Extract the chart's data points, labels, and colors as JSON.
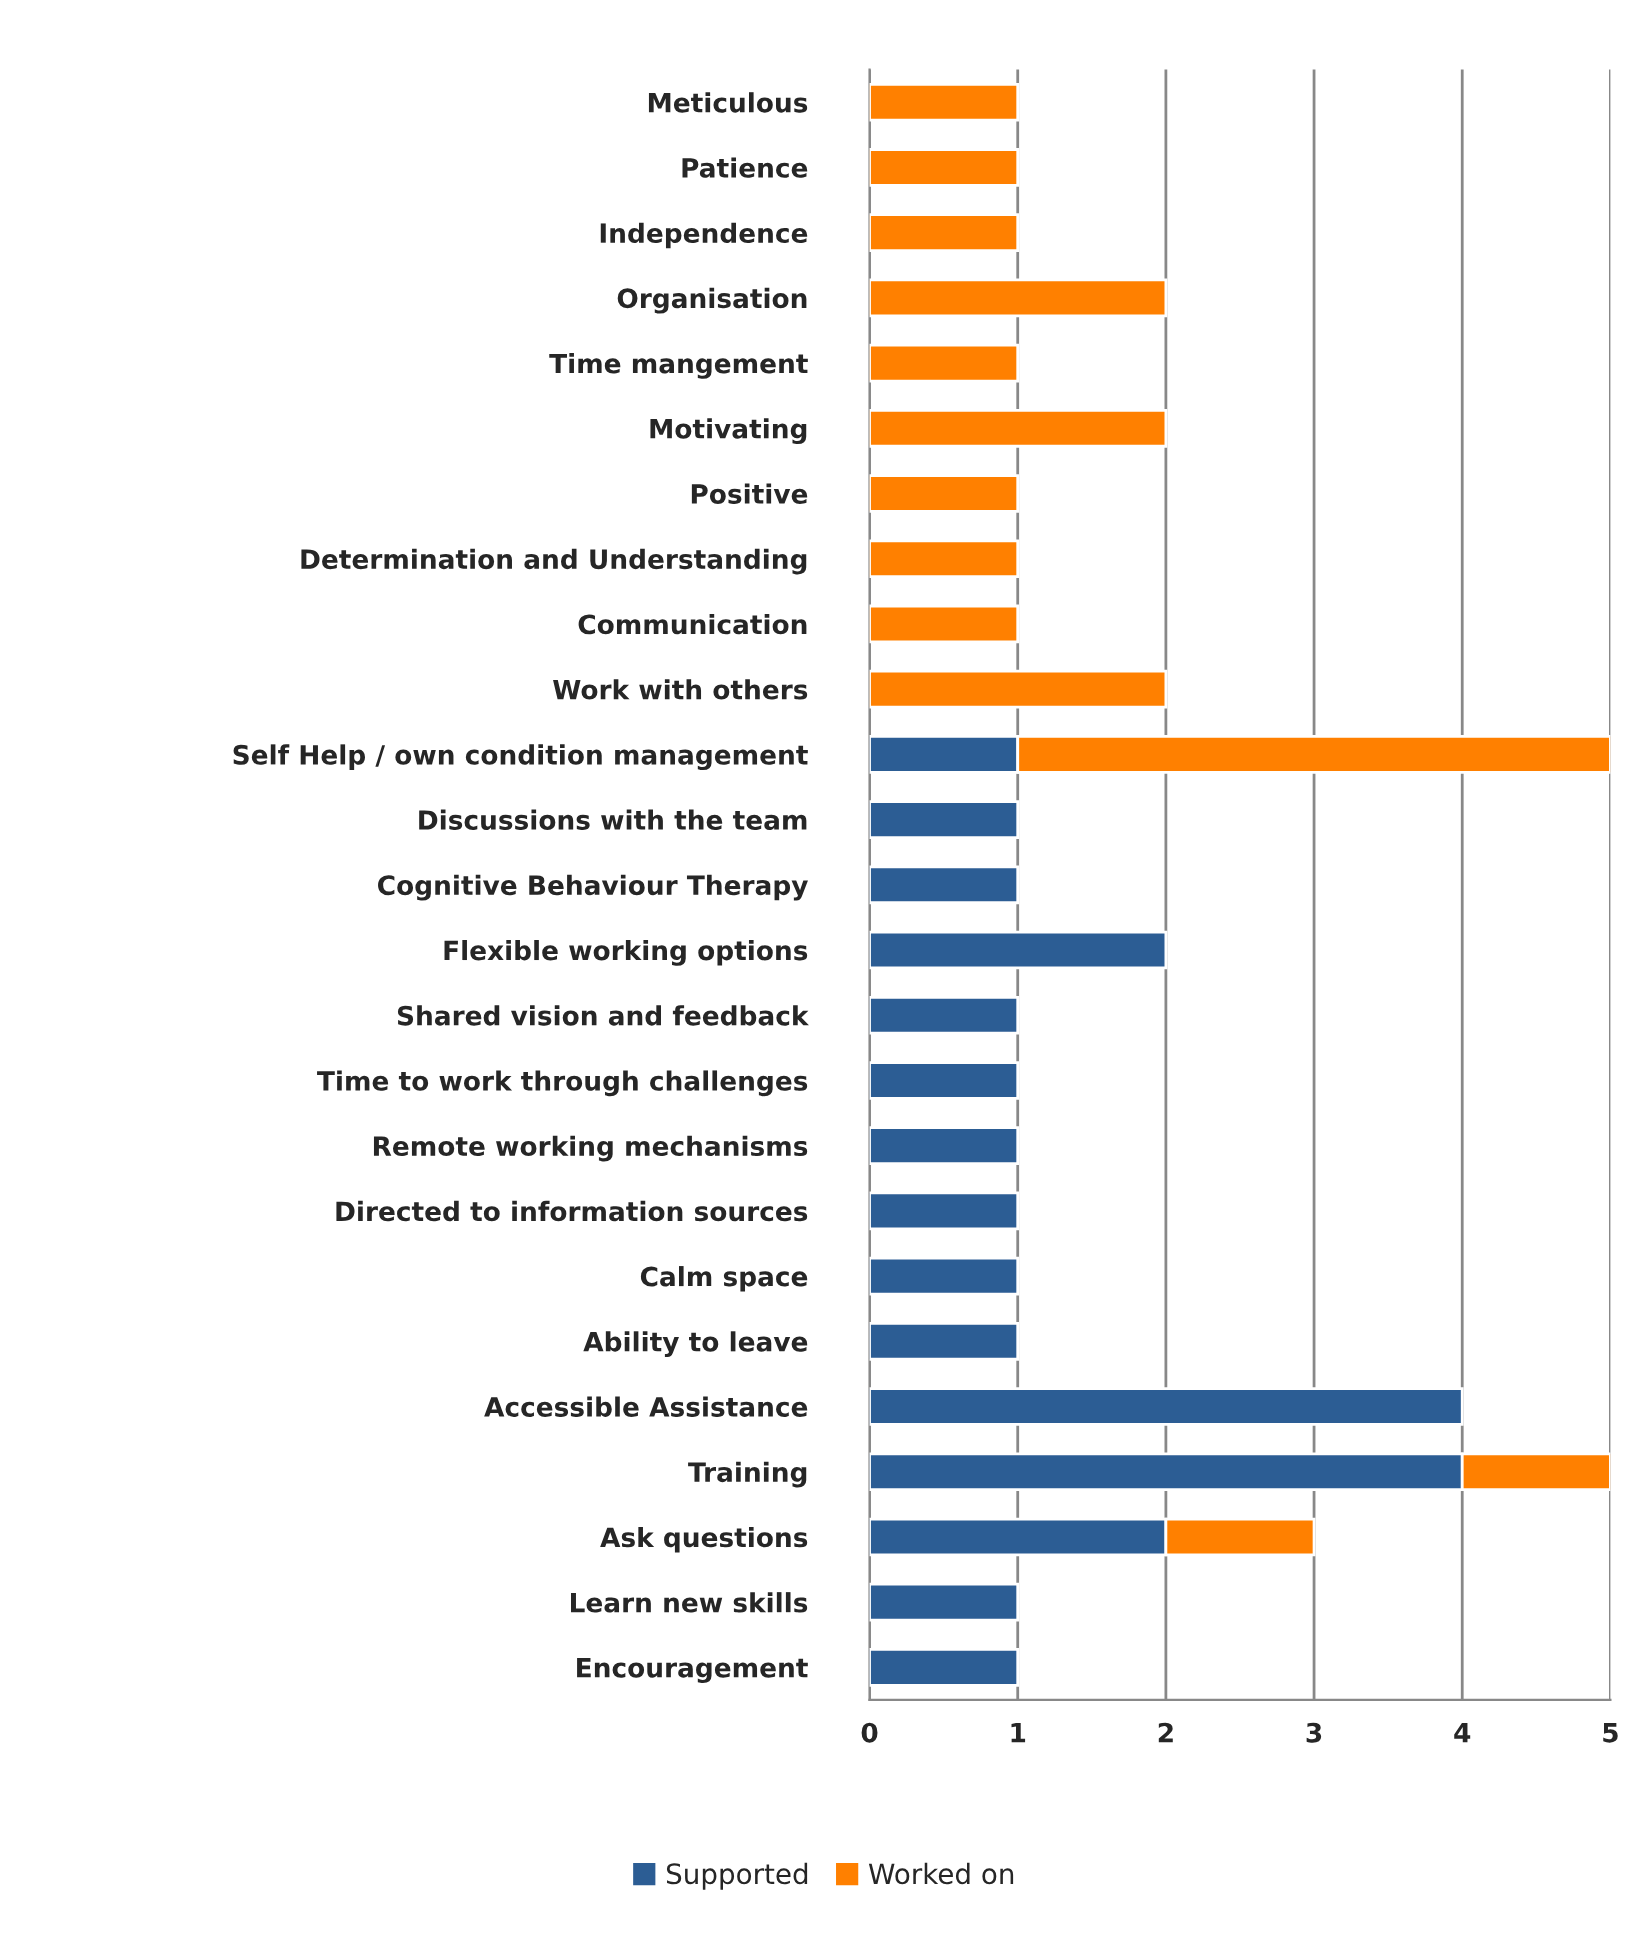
{
  "chart_data": {
    "type": "bar",
    "orientation": "horizontal",
    "stacked": true,
    "categories": [
      "Meticulous",
      "Patience",
      "Independence",
      "Organisation",
      "Time mangement",
      "Motivating",
      "Positive",
      "Determination and Understanding",
      "Communication",
      "Work with others",
      "Self Help / own condition management",
      "Discussions with the team",
      "Cognitive Behaviour Therapy",
      "Flexible working options",
      "Shared vision and feedback",
      "Time to work through challenges",
      "Remote working mechanisms",
      "Directed to information sources",
      "Calm space",
      "Ability to leave",
      "Accessible Assistance",
      "Training",
      "Ask questions",
      "Learn new skills",
      "Encouragement"
    ],
    "series": [
      {
        "name": "Supported",
        "color": "#2c5d94",
        "values": [
          null,
          null,
          null,
          null,
          null,
          null,
          null,
          null,
          null,
          null,
          1,
          1,
          1,
          2,
          1,
          1,
          1,
          1,
          1,
          1,
          4,
          4,
          2,
          1,
          1
        ]
      },
      {
        "name": "Worked on",
        "color": "#ff8000",
        "values": [
          1,
          1,
          1,
          2,
          1,
          2,
          1,
          1,
          1,
          2,
          4,
          null,
          null,
          null,
          null,
          null,
          null,
          null,
          null,
          null,
          null,
          1,
          1,
          null,
          null
        ]
      }
    ],
    "xlim": [
      0,
      5
    ],
    "xticks": [
      0,
      1,
      2,
      3,
      4,
      5
    ],
    "grid": "x",
    "legend": "bottom"
  }
}
